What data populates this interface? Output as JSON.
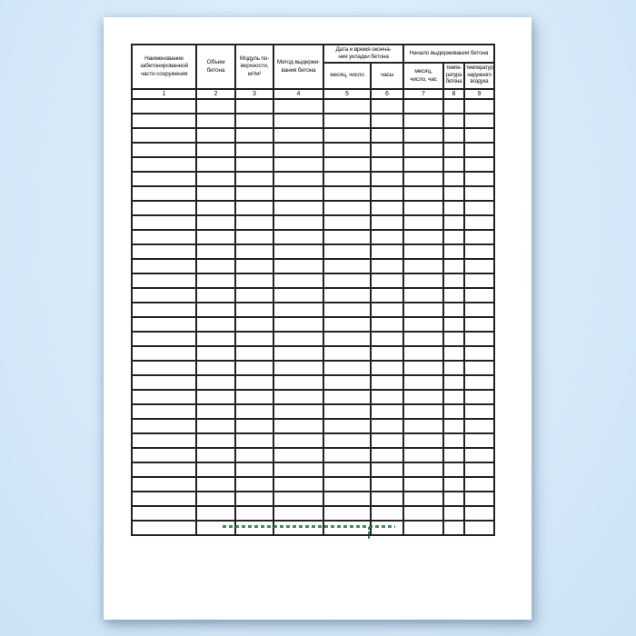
{
  "table": {
    "column_headers": [
      {
        "label": "Наименование\nзабетонированной\nчасти сооружения"
      },
      {
        "label": "Объем\nбетона"
      },
      {
        "label": "Модуль по-\nверхности,\nм²/м³"
      },
      {
        "label": "Метод выдержи-\nвания бетона"
      }
    ],
    "group_headers": [
      {
        "label": "Дата и время оконча-\nния укладки бетона"
      },
      {
        "label": "Начало выдерживания бетона"
      }
    ],
    "sub_headers": [
      {
        "label": "месяц, число"
      },
      {
        "label": "часы"
      },
      {
        "label": "месяц,\nчисло, час"
      },
      {
        "label": "темпе-\nратура\nбетона"
      },
      {
        "label": "температура\nнаружного\nвоздуха"
      }
    ],
    "column_numbers": [
      "1",
      "2",
      "3",
      "4",
      "5",
      "6",
      "7",
      "8",
      "9"
    ],
    "data_row_count": 30,
    "column_count": 9
  },
  "watermark": {
    "color": "#1e7a3c"
  },
  "colors": {
    "page": "#ffffff",
    "background": "#d7eafa",
    "grid_line": "#222222"
  }
}
